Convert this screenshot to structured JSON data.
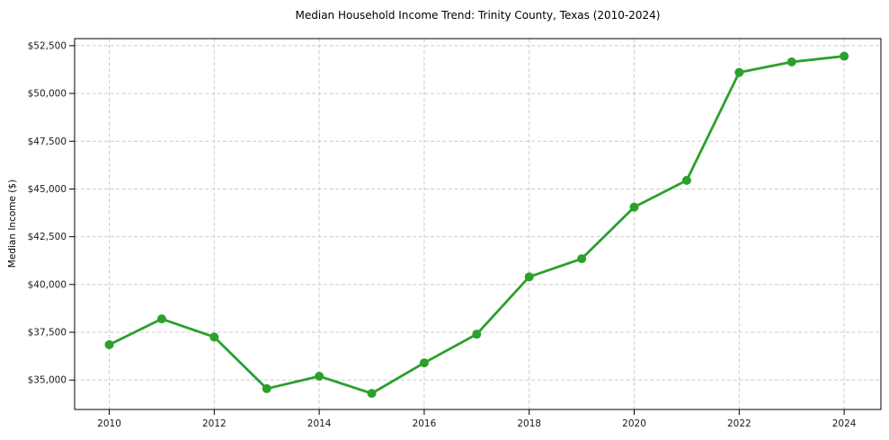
{
  "page": {
    "background": "#ffffff"
  },
  "chart_data": {
    "type": "line",
    "title": "Median Household Income Trend: Trinity County, Texas (2010-2024)",
    "xlabel": "",
    "ylabel": "Median Income ($)",
    "x": [
      2010,
      2011,
      2012,
      2013,
      2014,
      2015,
      2016,
      2017,
      2018,
      2019,
      2020,
      2021,
      2022,
      2023,
      2024
    ],
    "series": [
      {
        "name": "Median Household Income",
        "values": [
          36850,
          38200,
          37250,
          34550,
          35200,
          34300,
          35900,
          37400,
          40400,
          41350,
          44050,
          45450,
          51100,
          51650,
          51950
        ],
        "color": "#2ca02c"
      }
    ],
    "x_tick_values": [
      2010,
      2012,
      2014,
      2016,
      2018,
      2020,
      2022,
      2024
    ],
    "x_tick_labels": [
      "2010",
      "2012",
      "2014",
      "2016",
      "2018",
      "2020",
      "2022",
      "2024"
    ],
    "y_tick_values": [
      35000,
      37500,
      40000,
      42500,
      45000,
      47500,
      50000,
      52500
    ],
    "y_tick_labels": [
      "$35,000",
      "$37,500",
      "$40,000",
      "$42,500",
      "$45,000",
      "$47,500",
      "$50,000",
      "$52,500"
    ],
    "xlim": [
      2009.34,
      2024.7
    ],
    "ylim": [
      33460,
      52870
    ],
    "grid": "dashed",
    "grid_color": "#cccccc",
    "spine_color": "#000000",
    "tick_label_color": "#1a1a1a",
    "legend_position": "none",
    "marker": "circle",
    "marker_radius": 5,
    "line_width": 2.8
  }
}
